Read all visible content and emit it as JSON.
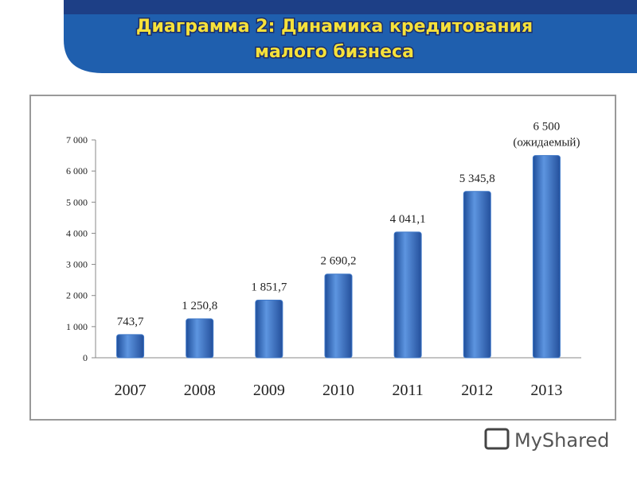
{
  "chart_data": {
    "type": "bar",
    "title": [
      "Диаграмма 2: Динамика кредитования",
      "малого бизнеса"
    ],
    "categories": [
      "2007",
      "2008",
      "2009",
      "2010",
      "2011",
      "2012",
      "2013"
    ],
    "values": [
      743.7,
      1250.8,
      1851.7,
      2690.2,
      4041.1,
      5345.8,
      6500
    ],
    "value_labels": [
      "743,7",
      "1 250,8",
      "1 851,7",
      "2 690,2",
      "4 041,1",
      "5 345,8",
      "6 500\n(ожидаемый)"
    ],
    "color": "#3f78c8",
    "ylim": [
      0,
      7000
    ],
    "yticks": [
      0,
      {
        "value": 1000,
        "label": "1 000"
      },
      {
        "value": 2000,
        "label": "2 000"
      },
      {
        "value": 3000,
        "label": "3 000"
      },
      {
        "value": 4000,
        "label": "4 000"
      },
      {
        "value": 5000,
        "label": "5 000"
      },
      {
        "value": 6000,
        "label": "6 000"
      },
      {
        "value": 7000,
        "label": "7 000"
      }
    ],
    "grid": false
  },
  "logo": "MyShared"
}
